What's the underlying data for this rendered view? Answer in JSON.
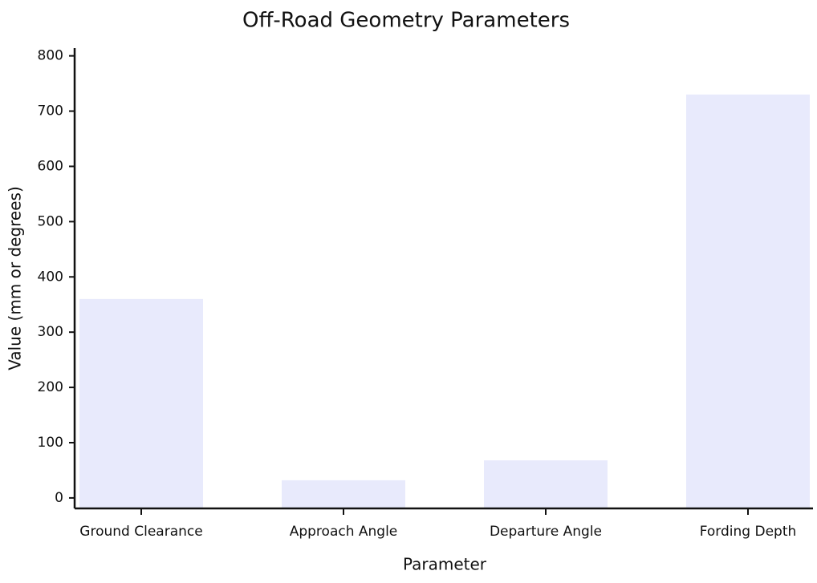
{
  "chart_data": {
    "type": "bar",
    "title": "Off-Road Geometry Parameters",
    "x_label": "Parameter",
    "y_label": "Value (mm or degrees)",
    "categories": [
      "Ground Clearance",
      "Approach Angle",
      "Departure Angle",
      "Fording Depth"
    ],
    "values": [
      360,
      32,
      68,
      730
    ],
    "color": "#e8eafc",
    "ylim": [
      -19,
      814
    ],
    "yticks": [
      0,
      100,
      200,
      300,
      400,
      500,
      600,
      700,
      800
    ],
    "grid": false
  }
}
